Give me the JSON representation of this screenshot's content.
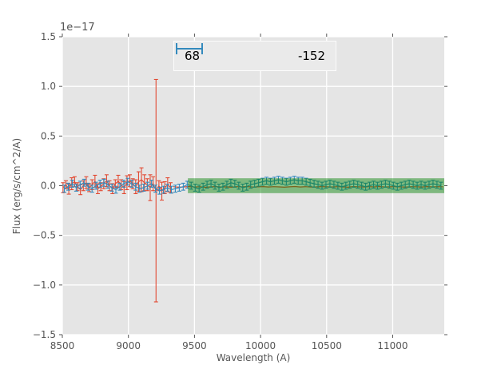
{
  "figure": {
    "offset_text": "1e−17",
    "xlabel": "Wavelength (A)",
    "ylabel": "Flux (erg/s/cm^2/A)",
    "background": "#ffffff",
    "axes_background": "#e5e5e5",
    "grid_color": "#ffffff",
    "tick_color": "#555555",
    "label_color": "#555555"
  },
  "legend": {
    "entries": [
      {
        "label": "68",
        "color": "#e24a33"
      },
      {
        "label": "-152",
        "color": "#348abd"
      }
    ]
  },
  "chart_data": {
    "type": "line",
    "subtype": "errorbar",
    "title": "",
    "xlabel": "Wavelength (A)",
    "ylabel": "Flux (erg/s/cm^2/A)",
    "y_offset_factor": "1e−17",
    "xlim": [
      8500,
      11390
    ],
    "ylim": [
      -1.5,
      1.5
    ],
    "xticks": [
      8500,
      9000,
      9500,
      10000,
      10500,
      11000
    ],
    "yticks": [
      -1.5,
      -1.0,
      -0.5,
      0.0,
      0.5,
      1.0,
      1.5
    ],
    "grid": true,
    "legend_position": "upper center",
    "band": {
      "x0": 9450,
      "x1": 11390,
      "y0": -0.075,
      "y1": 0.075,
      "color": "#008000",
      "alpha": 0.45
    },
    "series": [
      {
        "name": "68",
        "color": "#e24a33",
        "style": "errorbar",
        "x_start": 8505,
        "x_step": 22,
        "y": [
          -0.02,
          0.01,
          -0.035,
          0.02,
          0.04,
          -0.01,
          -0.04,
          0.0,
          0.03,
          -0.02,
          0.01,
          0.045,
          -0.03,
          -0.01,
          0.02,
          0.05,
          0.0,
          -0.03,
          0.02,
          0.045,
          0.01,
          -0.02,
          0.03,
          0.05,
          0.02,
          -0.01,
          0.04,
          0.06,
          0.03,
          0.01,
          -0.02,
          0.02,
          -0.05,
          0.0,
          -0.055,
          -0.02,
          0.01,
          -0.02
        ],
        "yerr": [
          0.05,
          0.04,
          0.05,
          0.06,
          0.05,
          0.04,
          0.05,
          0.05,
          0.06,
          0.04,
          0.05,
          0.06,
          0.05,
          0.04,
          0.05,
          0.06,
          0.05,
          0.05,
          0.04,
          0.06,
          0.05,
          0.06,
          0.07,
          0.06,
          0.05,
          0.07,
          0.1,
          0.12,
          0.08,
          0.06,
          0.13,
          0.07,
          1.12,
          0.05,
          0.09,
          0.06,
          0.07,
          0.05
        ]
      },
      {
        "name": "68",
        "color": "#e24a33",
        "style": "line",
        "x_start": 9340,
        "x_step": 40,
        "y": [
          -0.01,
          -0.015,
          -0.012,
          -0.008,
          -0.014,
          -0.01,
          -0.016,
          -0.012,
          -0.009,
          -0.013,
          -0.011,
          -0.015,
          -0.01,
          -0.012,
          -0.008,
          -0.014,
          -0.011,
          -0.009,
          -0.013,
          -0.01,
          -0.012,
          -0.015,
          -0.011,
          -0.008,
          -0.013,
          -0.01,
          -0.014,
          -0.012,
          -0.009,
          -0.011,
          -0.013,
          -0.01,
          -0.012,
          -0.015,
          -0.009,
          -0.011,
          -0.014,
          -0.01,
          -0.012,
          -0.008,
          -0.013,
          -0.011,
          -0.009,
          -0.012,
          -0.014,
          -0.01,
          -0.011,
          -0.013,
          -0.009,
          -0.012,
          -0.01,
          -0.011
        ]
      },
      {
        "name": "-152",
        "color": "#348abd",
        "style": "errorbar",
        "x_start": 8515,
        "x_step": 30,
        "y": [
          -0.03,
          -0.01,
          0.02,
          -0.02,
          0.01,
          0.03,
          -0.01,
          -0.03,
          0.0,
          0.02,
          0.03,
          0.01,
          -0.02,
          -0.04,
          -0.01,
          0.02,
          0.04,
          0.02,
          -0.01,
          -0.03,
          -0.02,
          0.0,
          0.02,
          -0.03,
          -0.05,
          -0.04,
          -0.02,
          -0.04,
          -0.03,
          -0.02,
          -0.01,
          0.01,
          0.0,
          -0.02,
          -0.03,
          -0.01,
          0.01,
          0.02,
          0.0,
          -0.02,
          -0.01,
          0.01,
          0.03,
          0.02,
          0.0,
          -0.02,
          -0.01,
          0.01,
          0.02,
          0.03,
          0.04,
          0.05,
          0.04,
          0.05,
          0.06,
          0.05,
          0.04,
          0.05,
          0.06,
          0.05,
          0.05,
          0.04,
          0.03,
          0.02,
          0.01,
          0.0,
          0.01,
          0.02,
          0.01,
          0.0,
          -0.01,
          0.0,
          0.01,
          0.02,
          0.01,
          0.0,
          -0.01,
          0.0,
          0.01,
          0.0,
          0.01,
          0.02,
          0.01,
          0.0,
          -0.01,
          0.0,
          0.01,
          0.02,
          0.01,
          0.0,
          0.01,
          0.0,
          0.01,
          0.02,
          0.01,
          0.0
        ],
        "yerr": 0.035
      }
    ]
  }
}
